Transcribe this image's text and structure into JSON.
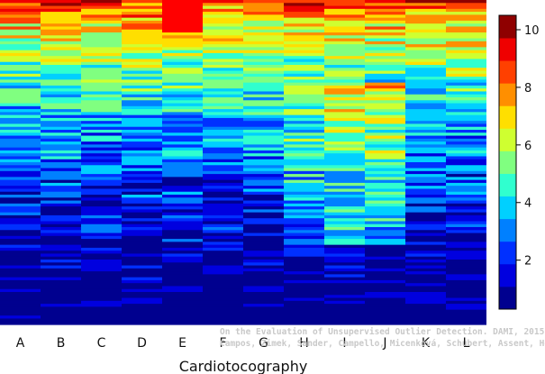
{
  "chart_data": {
    "type": "heatmap",
    "xlabel": "Cardiotocography",
    "categories": [
      "A",
      "B",
      "C",
      "D",
      "E",
      "F",
      "G",
      "H",
      "I",
      "J",
      "K",
      "L"
    ],
    "colorbar": {
      "range": [
        0.3,
        10.5
      ],
      "ticks": [
        "2",
        "4",
        "6",
        "8",
        "10"
      ],
      "colors": [
        "#00008f",
        "#0000df",
        "#0030ff",
        "#0080ff",
        "#00d0ff",
        "#30ffcf",
        "#80ff80",
        "#cfff30",
        "#ffdf00",
        "#ff8f00",
        "#ff4000",
        "#ef0000",
        "#8f0000"
      ]
    },
    "credit_lines": [
      "On the Evaluation of Unsupervised Outlier Detection. DAMI, 2015.",
      "Campos, Zimek, Sander, Campello, Micenková, Schubert, Assent, Houle"
    ]
  }
}
